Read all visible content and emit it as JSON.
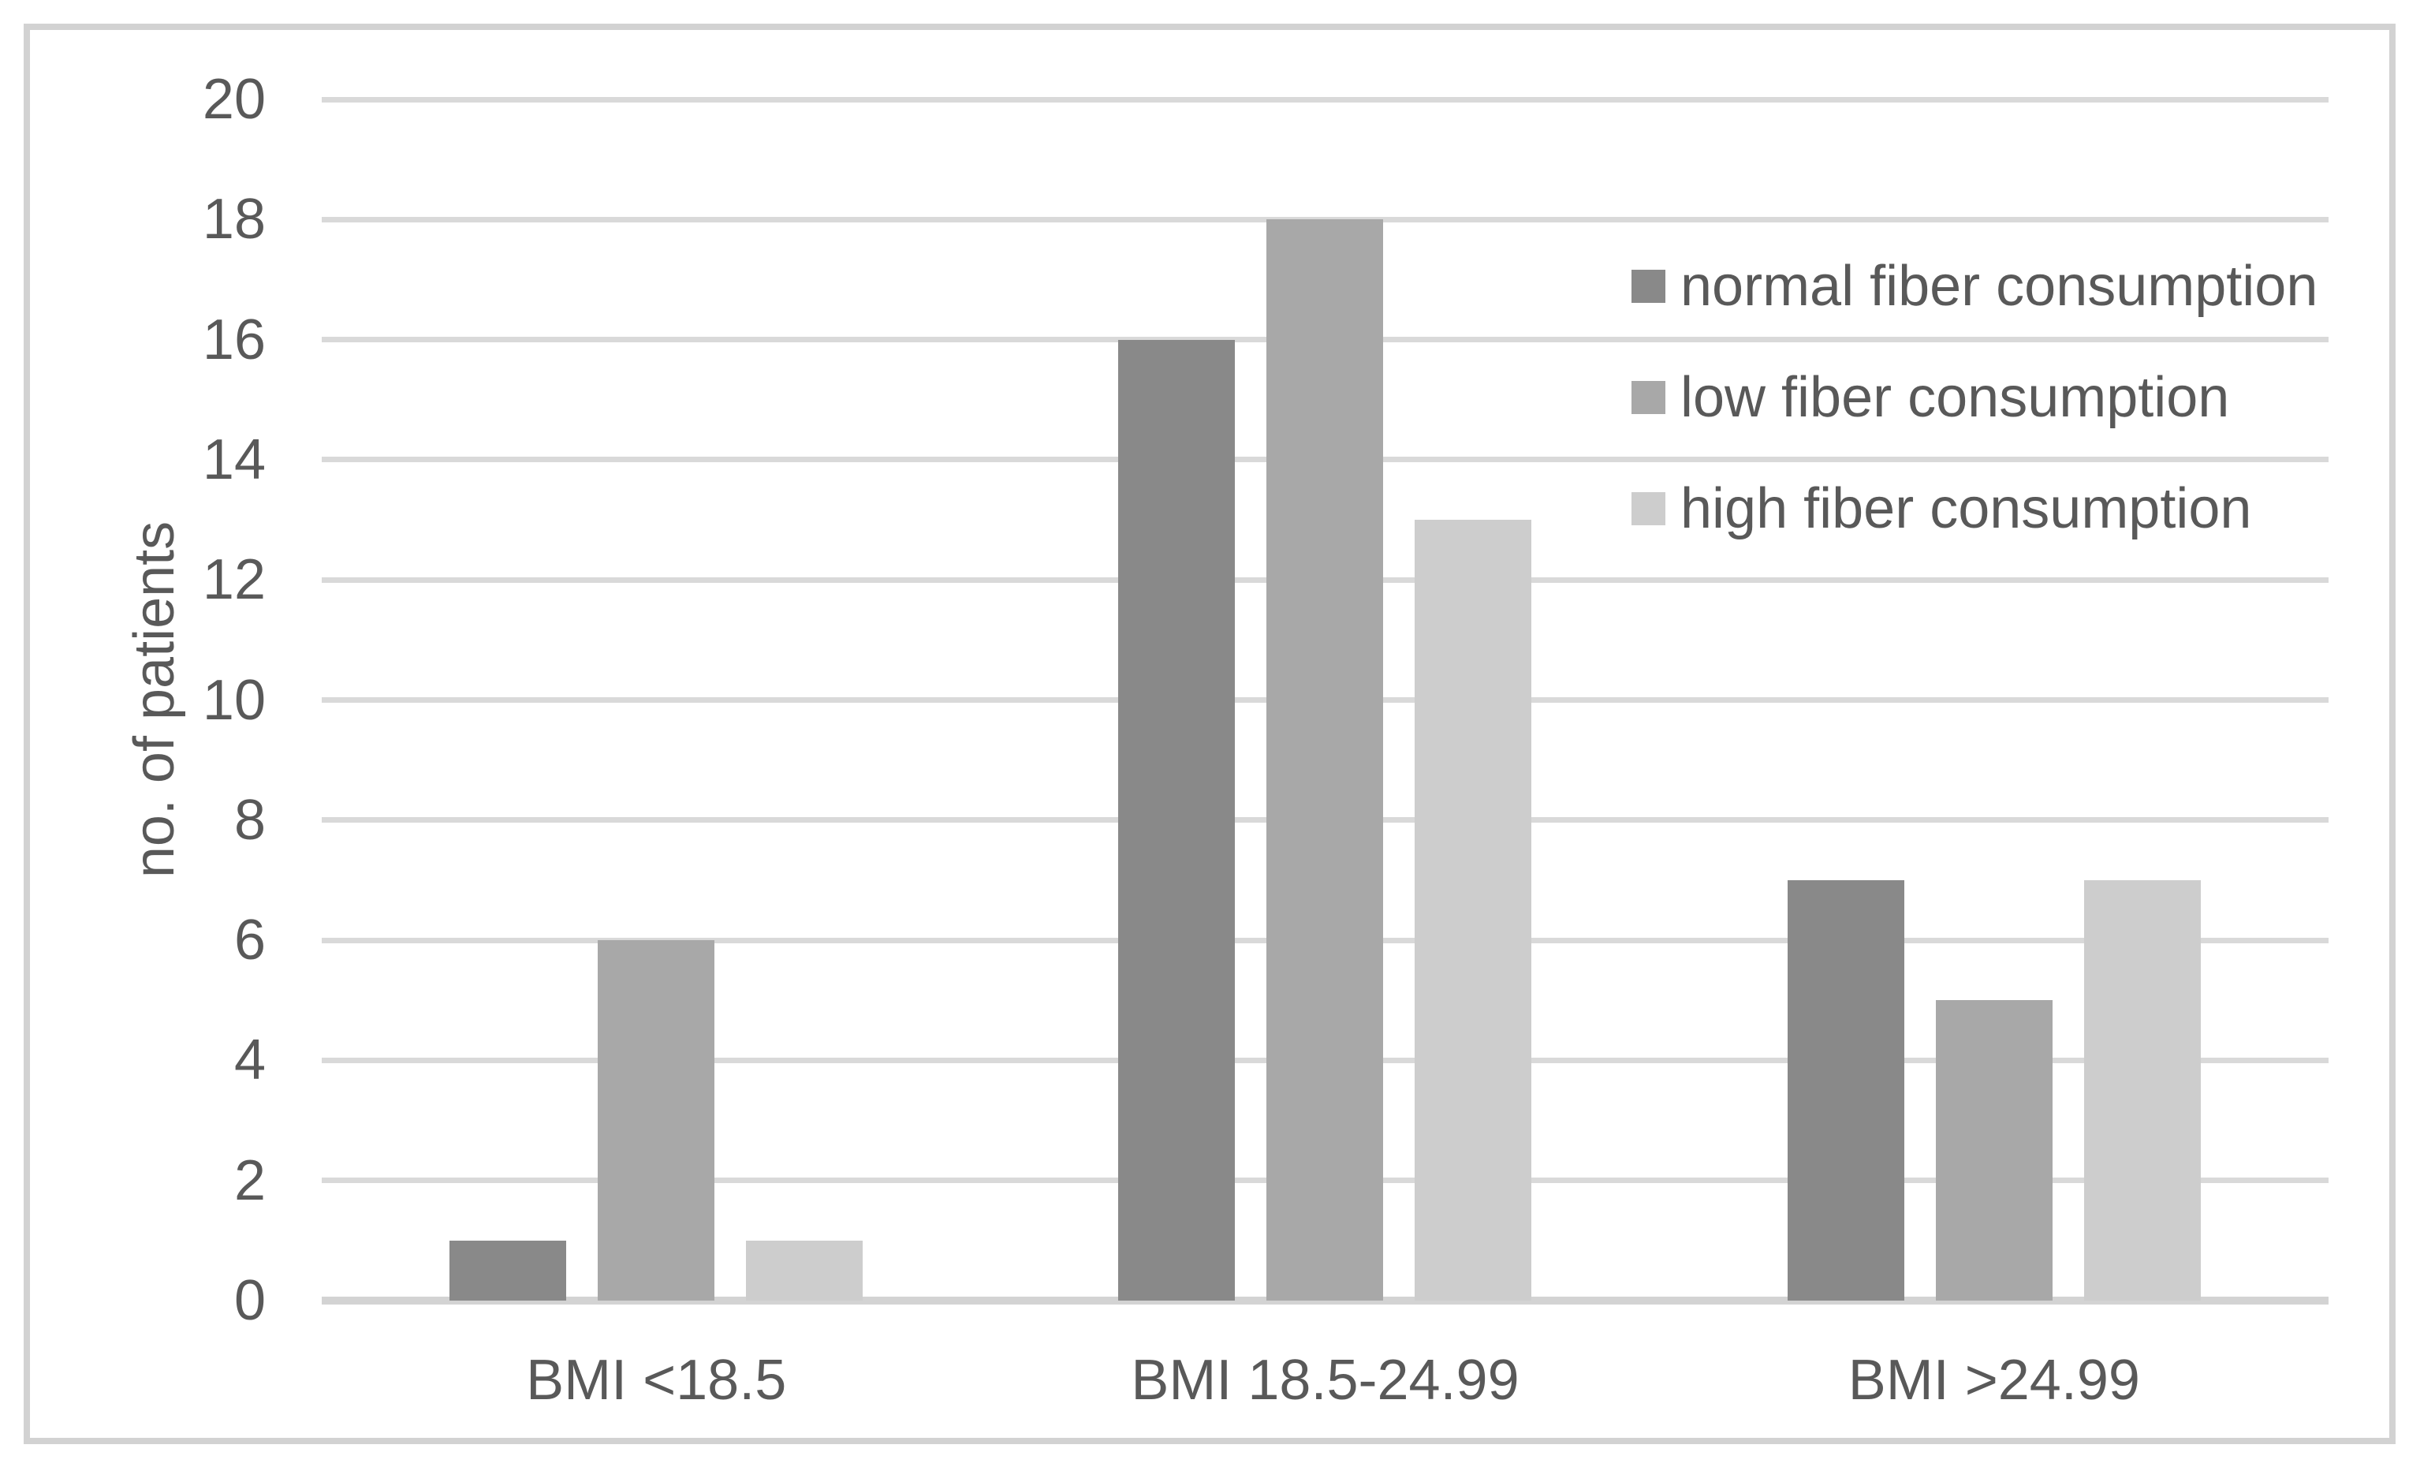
{
  "chart_data": {
    "type": "bar",
    "title": "",
    "xlabel": "",
    "ylabel": "no. of patients",
    "categories": [
      "BMI <18.5",
      "BMI 18.5-24.99",
      "BMI >24.99"
    ],
    "series": [
      {
        "name": "normal fiber consumption",
        "color": "#898989",
        "values": [
          1,
          16,
          7
        ]
      },
      {
        "name": "low fiber consumption",
        "color": "#a8a8a8",
        "values": [
          6,
          18,
          5
        ]
      },
      {
        "name": "high fiber consumption",
        "color": "#cdcdcd",
        "values": [
          1,
          13,
          7
        ]
      }
    ],
    "ylim": [
      0,
      20
    ],
    "ytick_step": 2,
    "ytick_labels": [
      "0",
      "2",
      "4",
      "6",
      "8",
      "10",
      "12",
      "14",
      "16",
      "18",
      "20"
    ],
    "grid": true,
    "legend_position": "top-right",
    "styles": {
      "gridline_color": "#d9d9d9",
      "axis_line_color": "#d3d3d3",
      "text_color": "#595959",
      "frame_border_color": "#d2d2d2",
      "background": "#ffffff"
    }
  }
}
